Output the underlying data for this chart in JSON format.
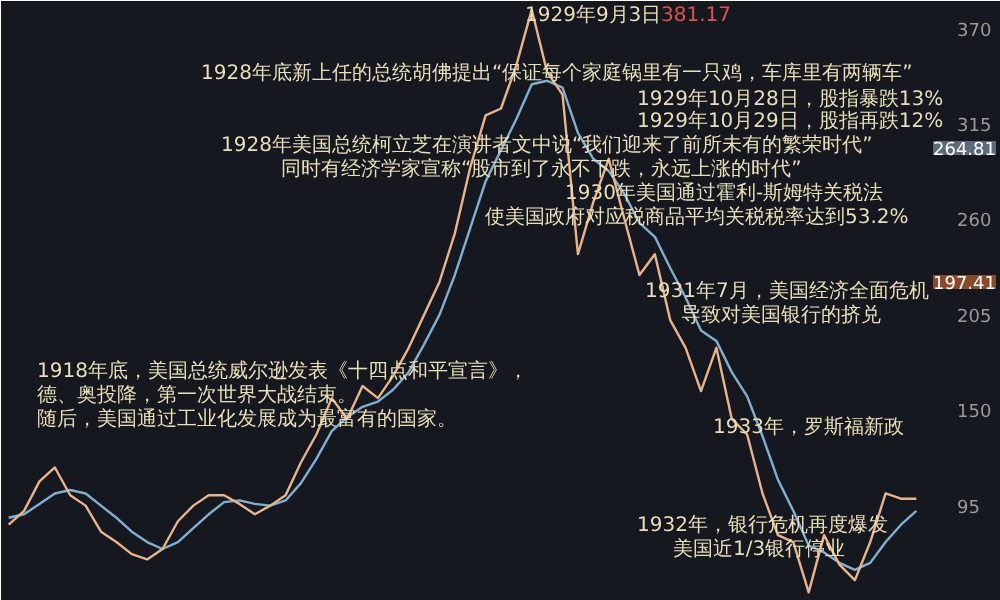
{
  "chart_data": {
    "type": "line",
    "categories": [
      null,
      null,
      null,
      null,
      null,
      null,
      null,
      null,
      null,
      null,
      null,
      null,
      null,
      null,
      null,
      null,
      null,
      null,
      null,
      null,
      null,
      null,
      null,
      null,
      null,
      null,
      null,
      null,
      null,
      null,
      null,
      null,
      null,
      null,
      null,
      null,
      null,
      null,
      null,
      null,
      null,
      null,
      null,
      null,
      null,
      null,
      null,
      null,
      null,
      null,
      null,
      null,
      null,
      null,
      null,
      null,
      null,
      null,
      null,
      null
    ],
    "series": [
      {
        "color": "#e8b48a",
        "values": [
          84,
          92,
          109,
          117,
          101,
          95,
          80,
          74,
          67,
          64,
          70,
          86,
          95,
          101,
          101,
          96,
          90,
          95,
          101,
          120,
          136,
          157,
          145,
          164,
          157,
          170,
          186,
          205,
          224,
          252,
          290,
          320,
          324,
          349,
          381,
          345,
          332,
          240,
          270,
          295,
          261,
          228,
          240,
          202,
          186,
          161,
          186,
          145,
          136,
          102,
          78,
          74,
          45,
          78,
          61,
          52,
          74,
          102,
          99,
          99
        ]
      },
      {
        "color": "#7fb0d0",
        "values": [
          88,
          90,
          96,
          102,
          104,
          102,
          95,
          88,
          80,
          74,
          70,
          74,
          82,
          90,
          97,
          98,
          96,
          95,
          98,
          108,
          122,
          138,
          146,
          152,
          155,
          162,
          172,
          188,
          205,
          228,
          255,
          282,
          300,
          318,
          338,
          340,
          336,
          310,
          295,
          288,
          275,
          258,
          250,
          232,
          215,
          196,
          190,
          172,
          158,
          135,
          110,
          92,
          72,
          68,
          62,
          58,
          62,
          74,
          84,
          92
        ]
      }
    ],
    "ylim": [
      40,
      386
    ],
    "yticks": [
      95,
      150,
      205,
      260,
      315,
      370
    ],
    "tick_labels": "y",
    "annotations": [
      "1929年9月3日",
      "381.17",
      "1928年底新上任的总统胡佛提出“保证每个家庭锅里有一只鸡，车库里有两辆车”",
      "1929年10月28日，股指暴跌13%",
      "1929年10月29日，股指再跌12%",
      "1928年美国总统柯立芝在演讲者文中说“我们迎来了前所未有的繁荣时代”",
      "同时有经济学家宣称“股市到了永不下跌，永远上涨的时代”",
      "1930年美国通过霍利-斯姆特关税法",
      "使美国政府对应税商品平均关税税率达到53.2%",
      "1931年7月，美国经济全面危机",
      "导致对美国银行的挤兑",
      "1918年底，美国总统威尔逊发表《十四点和平宣言》，",
      "德、奥投降，第一次世界大战结束。",
      "随后，美国通过工业化发展成为最富有的国家。",
      "1933年，罗斯福新政",
      "1932年，银行危机再度爆发",
      "美国近1/3银行停业",
      "264.81",
      "197.41"
    ]
  }
}
